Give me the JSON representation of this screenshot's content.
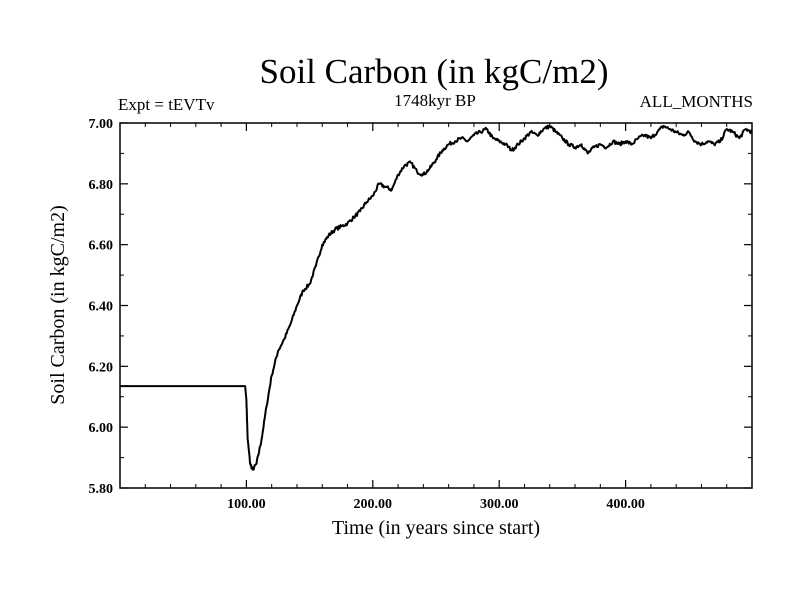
{
  "chart_data": {
    "type": "line",
    "title": "Soil Carbon (in kgC/m2)",
    "subtitle_left": "Expt = tEVTv",
    "subtitle_center": "1748kyr BP",
    "subtitle_right": "ALL_MONTHS",
    "xlabel": "Time (in years since start)",
    "ylabel": "Soil Carbon (in kgC/m2)",
    "xlim": [
      0,
      500
    ],
    "ylim": [
      5.8,
      7.0
    ],
    "x_ticks": [
      100,
      200,
      300,
      400
    ],
    "x_tick_labels": [
      "100.00",
      "200.00",
      "300.00",
      "400.00"
    ],
    "y_ticks": [
      5.8,
      6.0,
      6.2,
      6.4,
      6.6,
      6.8,
      7.0
    ],
    "y_tick_labels": [
      "5.80",
      "6.00",
      "6.20",
      "6.40",
      "6.60",
      "6.80",
      "7.00"
    ],
    "series": [
      {
        "name": "Soil Carbon",
        "x": [
          0,
          99,
          100,
          101,
          103,
          105,
          108,
          112,
          116,
          120,
          125,
          130,
          135,
          140,
          145,
          150,
          155,
          160,
          165,
          170,
          175,
          180,
          185,
          190,
          195,
          200,
          205,
          210,
          215,
          220,
          225,
          230,
          235,
          240,
          245,
          250,
          255,
          260,
          265,
          270,
          275,
          280,
          285,
          290,
          295,
          300,
          305,
          310,
          315,
          320,
          325,
          330,
          335,
          340,
          345,
          350,
          355,
          360,
          365,
          370,
          375,
          380,
          385,
          390,
          395,
          400,
          405,
          410,
          415,
          420,
          425,
          430,
          435,
          440,
          445,
          450,
          455,
          460,
          465,
          470,
          475,
          480,
          485,
          490,
          495,
          500
        ],
        "y": [
          6.135,
          6.135,
          6.09,
          5.96,
          5.88,
          5.86,
          5.88,
          5.96,
          6.07,
          6.17,
          6.25,
          6.29,
          6.34,
          6.4,
          6.45,
          6.47,
          6.53,
          6.6,
          6.63,
          6.65,
          6.66,
          6.67,
          6.69,
          6.71,
          6.74,
          6.76,
          6.8,
          6.79,
          6.78,
          6.83,
          6.86,
          6.87,
          6.84,
          6.83,
          6.85,
          6.88,
          6.91,
          6.93,
          6.94,
          6.95,
          6.94,
          6.96,
          6.97,
          6.98,
          6.95,
          6.94,
          6.93,
          6.91,
          6.93,
          6.95,
          6.97,
          6.96,
          6.98,
          6.99,
          6.97,
          6.95,
          6.93,
          6.92,
          6.93,
          6.9,
          6.92,
          6.93,
          6.92,
          6.94,
          6.93,
          6.94,
          6.93,
          6.95,
          6.96,
          6.95,
          6.97,
          6.99,
          6.98,
          6.97,
          6.96,
          6.97,
          6.94,
          6.93,
          6.94,
          6.93,
          6.94,
          6.98,
          6.97,
          6.95,
          6.98,
          6.97
        ]
      }
    ]
  }
}
